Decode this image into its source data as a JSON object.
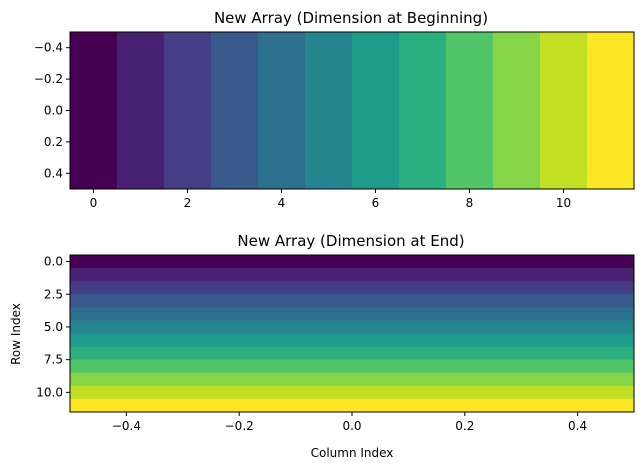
{
  "colors": {
    "viridis_12": [
      "#440154",
      "#482173",
      "#433e85",
      "#38598c",
      "#2d708e",
      "#25858e",
      "#1e9b8a",
      "#2ab07f",
      "#52c569",
      "#86d549",
      "#c2df23",
      "#fde725"
    ]
  },
  "chart_data": [
    {
      "type": "heatmap",
      "title": "New Array (Dimension at Beginning)",
      "xlabel": "",
      "ylabel": "",
      "orientation": "horizontal",
      "values": [
        0,
        1,
        2,
        3,
        4,
        5,
        6,
        7,
        8,
        9,
        10,
        11
      ],
      "colormap": "viridis",
      "xlim": [
        -0.5,
        11.5
      ],
      "ylim": [
        0.5,
        -0.5
      ],
      "xticks": [
        0,
        2,
        4,
        6,
        8,
        10
      ],
      "xtick_labels": [
        "0",
        "2",
        "4",
        "6",
        "8",
        "10"
      ],
      "yticks": [
        -0.4,
        -0.2,
        0.0,
        0.2,
        0.4
      ],
      "ytick_labels": [
        "−0.4",
        "−0.2",
        "0.0",
        "0.2",
        "0.4"
      ],
      "grid": false
    },
    {
      "type": "heatmap",
      "title": "New Array (Dimension at End)",
      "xlabel": "Column Index",
      "ylabel": "Row Index",
      "orientation": "vertical",
      "values": [
        0,
        1,
        2,
        3,
        4,
        5,
        6,
        7,
        8,
        9,
        10,
        11
      ],
      "colormap": "viridis",
      "xlim": [
        -0.5,
        0.5
      ],
      "ylim": [
        11.5,
        -0.5
      ],
      "xticks": [
        -0.4,
        -0.2,
        0.0,
        0.2,
        0.4
      ],
      "xtick_labels": [
        "−0.4",
        "−0.2",
        "0.0",
        "0.2",
        "0.4"
      ],
      "yticks": [
        0,
        2.5,
        5,
        7.5,
        10
      ],
      "ytick_labels": [
        "0.0",
        "2.5",
        "5.0",
        "7.5",
        "10.0"
      ],
      "grid": false
    }
  ]
}
